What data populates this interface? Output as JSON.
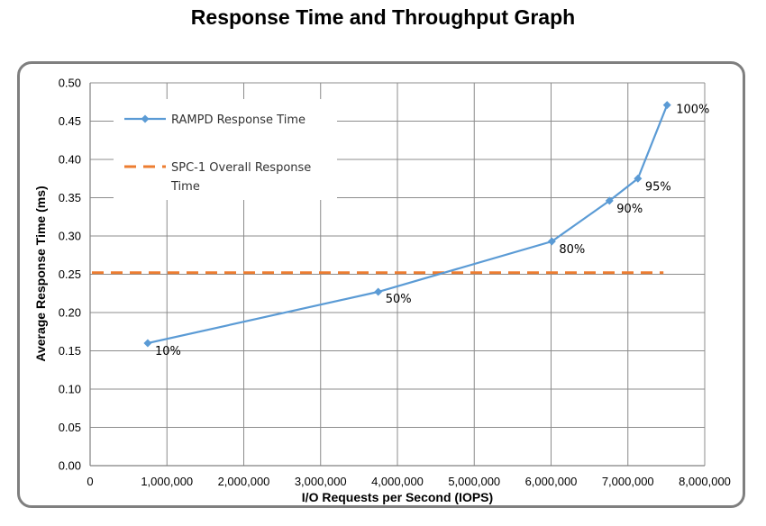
{
  "chart_data": {
    "type": "line",
    "title": "Response Time and Throughput Graph",
    "xlabel": "I/O Requests per Second (IOPS)",
    "ylabel": "Average Response Time (ms)",
    "xlim": [
      0,
      8000000
    ],
    "ylim": [
      0,
      0.5
    ],
    "x_ticks": [
      "0",
      "1,000,000",
      "2,000,000",
      "3,000,000",
      "4,000,000",
      "5,000,000",
      "6,000,000",
      "7,000,000",
      "8,000,000"
    ],
    "y_ticks": [
      "0.00",
      "0.05",
      "0.10",
      "0.15",
      "0.20",
      "0.25",
      "0.30",
      "0.35",
      "0.40",
      "0.45",
      "0.50"
    ],
    "grid": true,
    "legend_position": "top-left",
    "series": [
      {
        "name": "RAMPD Response Time",
        "color": "#5b9bd5",
        "marker": "diamond",
        "points": [
          {
            "x": 750000,
            "y": 0.16,
            "label": "10%"
          },
          {
            "x": 3750000,
            "y": 0.227,
            "label": "50%"
          },
          {
            "x": 6010000,
            "y": 0.293,
            "label": "80%"
          },
          {
            "x": 6760000,
            "y": 0.346,
            "label": "90%"
          },
          {
            "x": 7130000,
            "y": 0.375,
            "label": "95%"
          },
          {
            "x": 7510000,
            "y": 0.471,
            "label": "100%"
          }
        ]
      },
      {
        "name": "SPC-1 Overall Response Time",
        "name_lines": [
          "SPC-1 Overall Response",
          "Time"
        ],
        "color": "#ed7d31",
        "style": "dashed",
        "x": [
          0,
          7510000
        ],
        "y": [
          0.252,
          0.252
        ]
      }
    ]
  }
}
